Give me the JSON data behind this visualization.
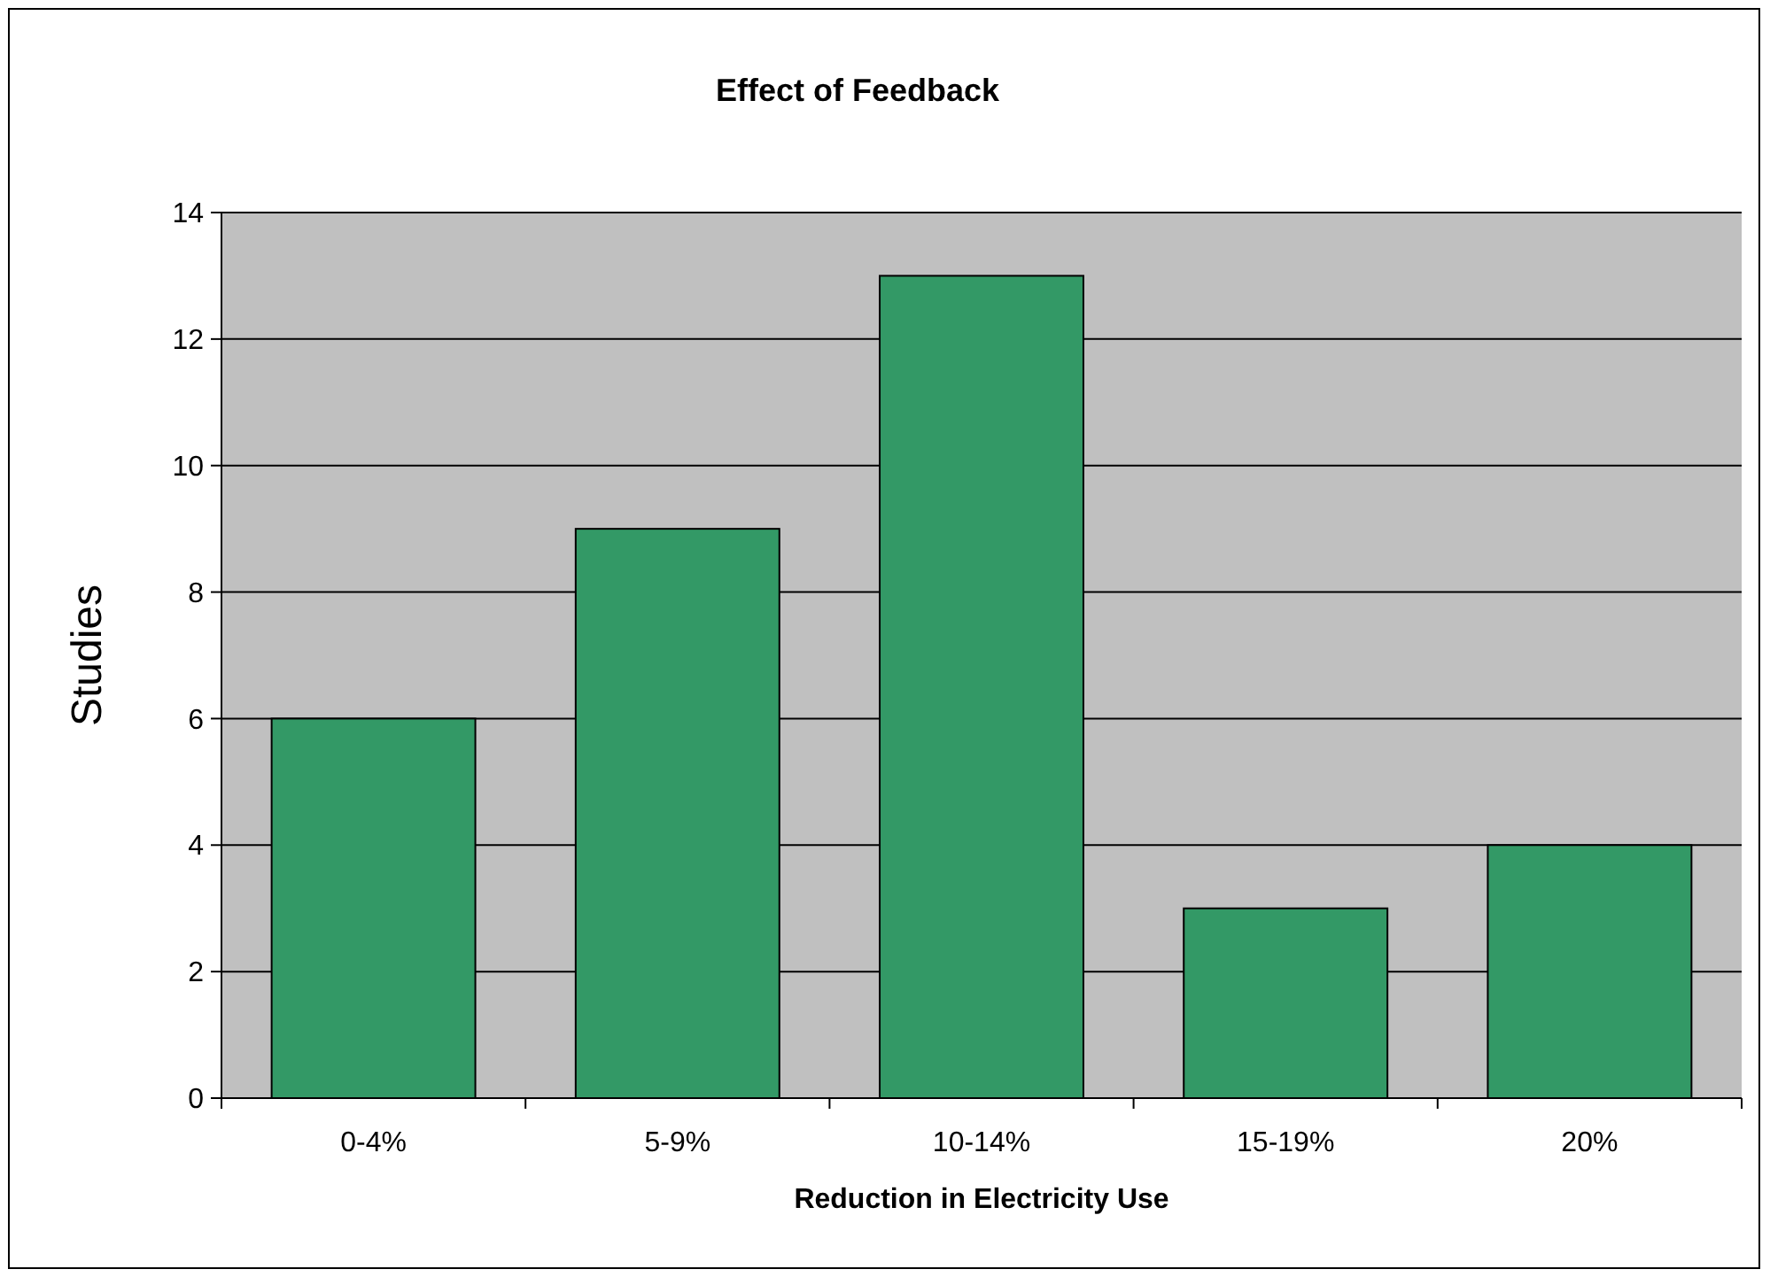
{
  "chart_data": {
    "type": "bar",
    "title": "Effect of Feedback",
    "xlabel": "Reduction in Electricity Use",
    "ylabel": "Studies",
    "categories": [
      "0-4%",
      "5-9%",
      "10-14%",
      "15-19%",
      "20%"
    ],
    "values": [
      6,
      9,
      13,
      3,
      4
    ],
    "color": "#339966",
    "ylim": [
      0,
      14
    ],
    "yticks": [
      0,
      2,
      4,
      6,
      8,
      10,
      12,
      14
    ],
    "grid": "y"
  }
}
